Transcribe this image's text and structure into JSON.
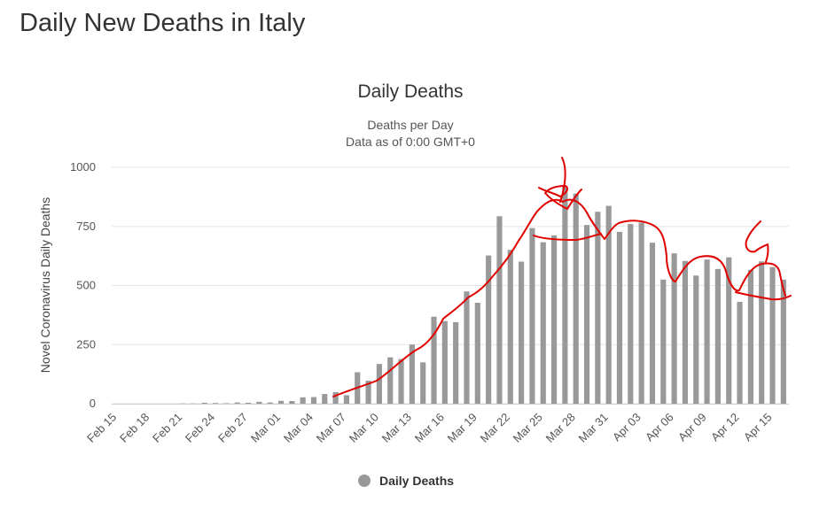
{
  "page": {
    "heading": "Daily New Deaths in Italy"
  },
  "chart_data": {
    "type": "bar",
    "title": "Daily Deaths",
    "subtitle_lines": [
      "Deaths per Day",
      "Data as of 0:00 GMT+0"
    ],
    "xlabel": "",
    "ylabel": "Novel Coronavirus Daily Deaths",
    "ylim": [
      0,
      1000
    ],
    "y_ticks": [
      0,
      250,
      500,
      750,
      1000
    ],
    "grid": true,
    "legend_position": "bottom-center",
    "categories": [
      "Feb 15",
      "Feb 16",
      "Feb 17",
      "Feb 18",
      "Feb 19",
      "Feb 20",
      "Feb 21",
      "Feb 22",
      "Feb 23",
      "Feb 24",
      "Feb 25",
      "Feb 26",
      "Feb 27",
      "Feb 28",
      "Feb 29",
      "Mar 01",
      "Mar 02",
      "Mar 03",
      "Mar 04",
      "Mar 05",
      "Mar 06",
      "Mar 07",
      "Mar 08",
      "Mar 09",
      "Mar 10",
      "Mar 11",
      "Mar 12",
      "Mar 13",
      "Mar 14",
      "Mar 15",
      "Mar 16",
      "Mar 17",
      "Mar 18",
      "Mar 19",
      "Mar 20",
      "Mar 21",
      "Mar 22",
      "Mar 23",
      "Mar 24",
      "Mar 25",
      "Mar 26",
      "Mar 27",
      "Mar 28",
      "Mar 29",
      "Mar 30",
      "Mar 31",
      "Apr 01",
      "Apr 02",
      "Apr 03",
      "Apr 04",
      "Apr 05",
      "Apr 06",
      "Apr 07",
      "Apr 08",
      "Apr 09",
      "Apr 10",
      "Apr 11",
      "Apr 12",
      "Apr 13",
      "Apr 14",
      "Apr 15",
      "Apr 16"
    ],
    "x_tick_labels": [
      "Feb 15",
      "Feb 18",
      "Feb 21",
      "Feb 24",
      "Feb 27",
      "Mar 01",
      "Mar 04",
      "Mar 07",
      "Mar 10",
      "Mar 13",
      "Mar 16",
      "Mar 19",
      "Mar 22",
      "Mar 25",
      "Mar 28",
      "Mar 31",
      "Apr 03",
      "Apr 06",
      "Apr 09",
      "Apr 12",
      "Apr 15"
    ],
    "series": [
      {
        "name": "Daily Deaths",
        "color": "#999999",
        "values": [
          0,
          0,
          0,
          0,
          0,
          0,
          1,
          1,
          4,
          3,
          2,
          5,
          4,
          8,
          5,
          12,
          11,
          27,
          28,
          41,
          49,
          36,
          133,
          97,
          168,
          196,
          189,
          250,
          175,
          368,
          349,
          345,
          475,
          427,
          627,
          793,
          651,
          601,
          743,
          683,
          712,
          919,
          889,
          756,
          812,
          837,
          727,
          760,
          766,
          681,
          525,
          636,
          604,
          542,
          610,
          570,
          619,
          431,
          566,
          602,
          578,
          525
        ]
      }
    ]
  },
  "annotation": {
    "color": "#e00000"
  }
}
